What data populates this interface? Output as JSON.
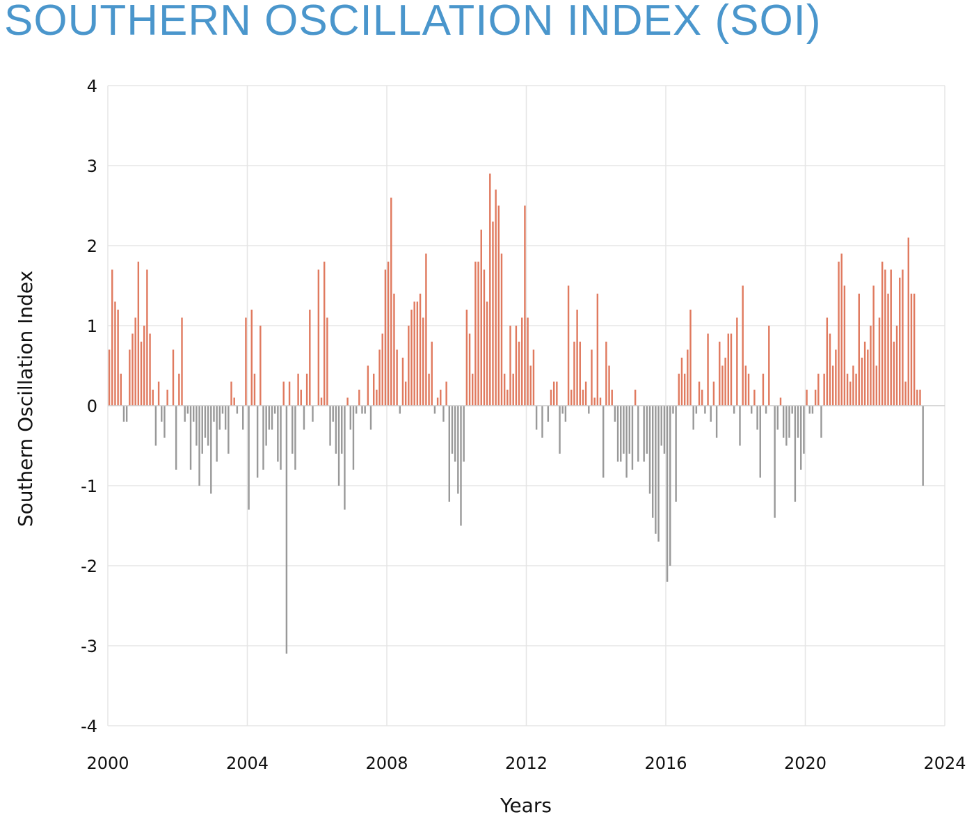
{
  "chart_data": {
    "type": "bar",
    "title": "SOUTHERN OSCILLATION INDEX (SOI)",
    "xlabel": "Years",
    "ylabel": "Southern Oscillation Index",
    "xlim": [
      2000,
      2024
    ],
    "ylim": [
      -4,
      4
    ],
    "x_ticks": [
      "2000",
      "2004",
      "2008",
      "2012",
      "2016",
      "2020",
      "2024"
    ],
    "y_ticks": [
      "4",
      "3",
      "2",
      "1",
      "0",
      "-1",
      "-2",
      "-3",
      "-4"
    ],
    "grid": true,
    "colors": {
      "positive": "#e07a5f",
      "negative": "#999999",
      "title": "#4a96cc",
      "grid": "#e5e5e5"
    },
    "start": "2000-01",
    "frequency": "monthly",
    "values": [
      0.7,
      1.7,
      1.3,
      1.2,
      0.4,
      -0.2,
      -0.2,
      0.7,
      0.9,
      1.1,
      1.8,
      0.8,
      1.0,
      1.7,
      0.9,
      0.2,
      -0.5,
      0.3,
      -0.2,
      -0.4,
      0.2,
      0.0,
      0.7,
      -0.8,
      0.4,
      1.1,
      -0.2,
      -0.1,
      -0.8,
      -0.2,
      -0.5,
      -1.0,
      -0.6,
      -0.4,
      -0.5,
      -1.1,
      -0.2,
      -0.7,
      -0.3,
      -0.1,
      -0.3,
      -0.6,
      0.3,
      0.1,
      -0.1,
      0.0,
      -0.3,
      1.1,
      -1.3,
      1.2,
      0.4,
      -0.9,
      1.0,
      -0.8,
      -0.5,
      -0.3,
      -0.3,
      -0.1,
      -0.7,
      -0.8,
      0.3,
      -3.1,
      0.3,
      -0.6,
      -0.8,
      0.4,
      0.2,
      -0.3,
      0.4,
      1.2,
      -0.2,
      0.0,
      1.7,
      0.1,
      1.8,
      1.1,
      -0.5,
      -0.2,
      -0.6,
      -1.0,
      -0.6,
      -1.3,
      0.1,
      -0.3,
      -0.8,
      -0.1,
      0.2,
      -0.1,
      -0.1,
      0.5,
      -0.3,
      0.4,
      0.2,
      0.7,
      0.9,
      1.7,
      1.8,
      2.6,
      1.4,
      0.7,
      -0.1,
      0.6,
      0.3,
      1.0,
      1.2,
      1.3,
      1.3,
      1.4,
      1.1,
      1.9,
      0.4,
      0.8,
      -0.1,
      0.1,
      0.2,
      -0.2,
      0.3,
      -1.2,
      -0.6,
      -0.7,
      -1.1,
      -1.5,
      -0.7,
      1.2,
      0.9,
      0.4,
      1.8,
      1.8,
      2.2,
      1.7,
      1.3,
      2.9,
      2.3,
      2.7,
      2.5,
      1.9,
      0.4,
      0.2,
      1.0,
      0.4,
      1.0,
      0.8,
      1.1,
      2.5,
      1.1,
      0.5,
      0.7,
      -0.3,
      0.0,
      -0.4,
      0.0,
      -0.2,
      0.2,
      0.3,
      0.3,
      -0.6,
      -0.1,
      -0.2,
      1.5,
      0.2,
      0.8,
      1.2,
      0.8,
      0.2,
      0.3,
      -0.1,
      0.7,
      0.1,
      1.4,
      0.1,
      -0.9,
      0.8,
      0.5,
      0.2,
      -0.2,
      -0.7,
      -0.7,
      -0.6,
      -0.9,
      -0.6,
      -0.8,
      0.2,
      -0.7,
      0.0,
      -0.7,
      -0.6,
      -1.1,
      -1.4,
      -1.6,
      -1.7,
      -0.5,
      -0.6,
      -2.2,
      -2.0,
      -0.1,
      -1.2,
      0.4,
      0.6,
      0.4,
      0.7,
      1.2,
      -0.3,
      -0.1,
      0.3,
      0.2,
      -0.1,
      0.9,
      -0.2,
      0.3,
      -0.4,
      0.8,
      0.5,
      0.6,
      0.9,
      0.9,
      -0.1,
      1.1,
      -0.5,
      1.5,
      0.5,
      0.4,
      -0.1,
      0.2,
      -0.3,
      -0.9,
      0.4,
      -0.1,
      1.0,
      0.0,
      -1.4,
      -0.3,
      0.1,
      -0.4,
      -0.5,
      -0.4,
      -0.1,
      -1.2,
      -0.4,
      -0.8,
      -0.6,
      0.2,
      -0.1,
      -0.1,
      0.2,
      0.4,
      -0.4,
      0.4,
      1.1,
      0.9,
      0.5,
      0.7,
      1.8,
      1.9,
      1.5,
      0.4,
      0.3,
      0.5,
      0.4,
      1.4,
      0.6,
      0.8,
      0.7,
      1.0,
      1.5,
      0.5,
      1.1,
      1.8,
      1.7,
      1.4,
      1.7,
      0.8,
      1.0,
      1.6,
      1.7,
      0.3,
      2.1,
      1.4,
      1.4,
      0.2,
      0.2,
      -1.0
    ]
  }
}
